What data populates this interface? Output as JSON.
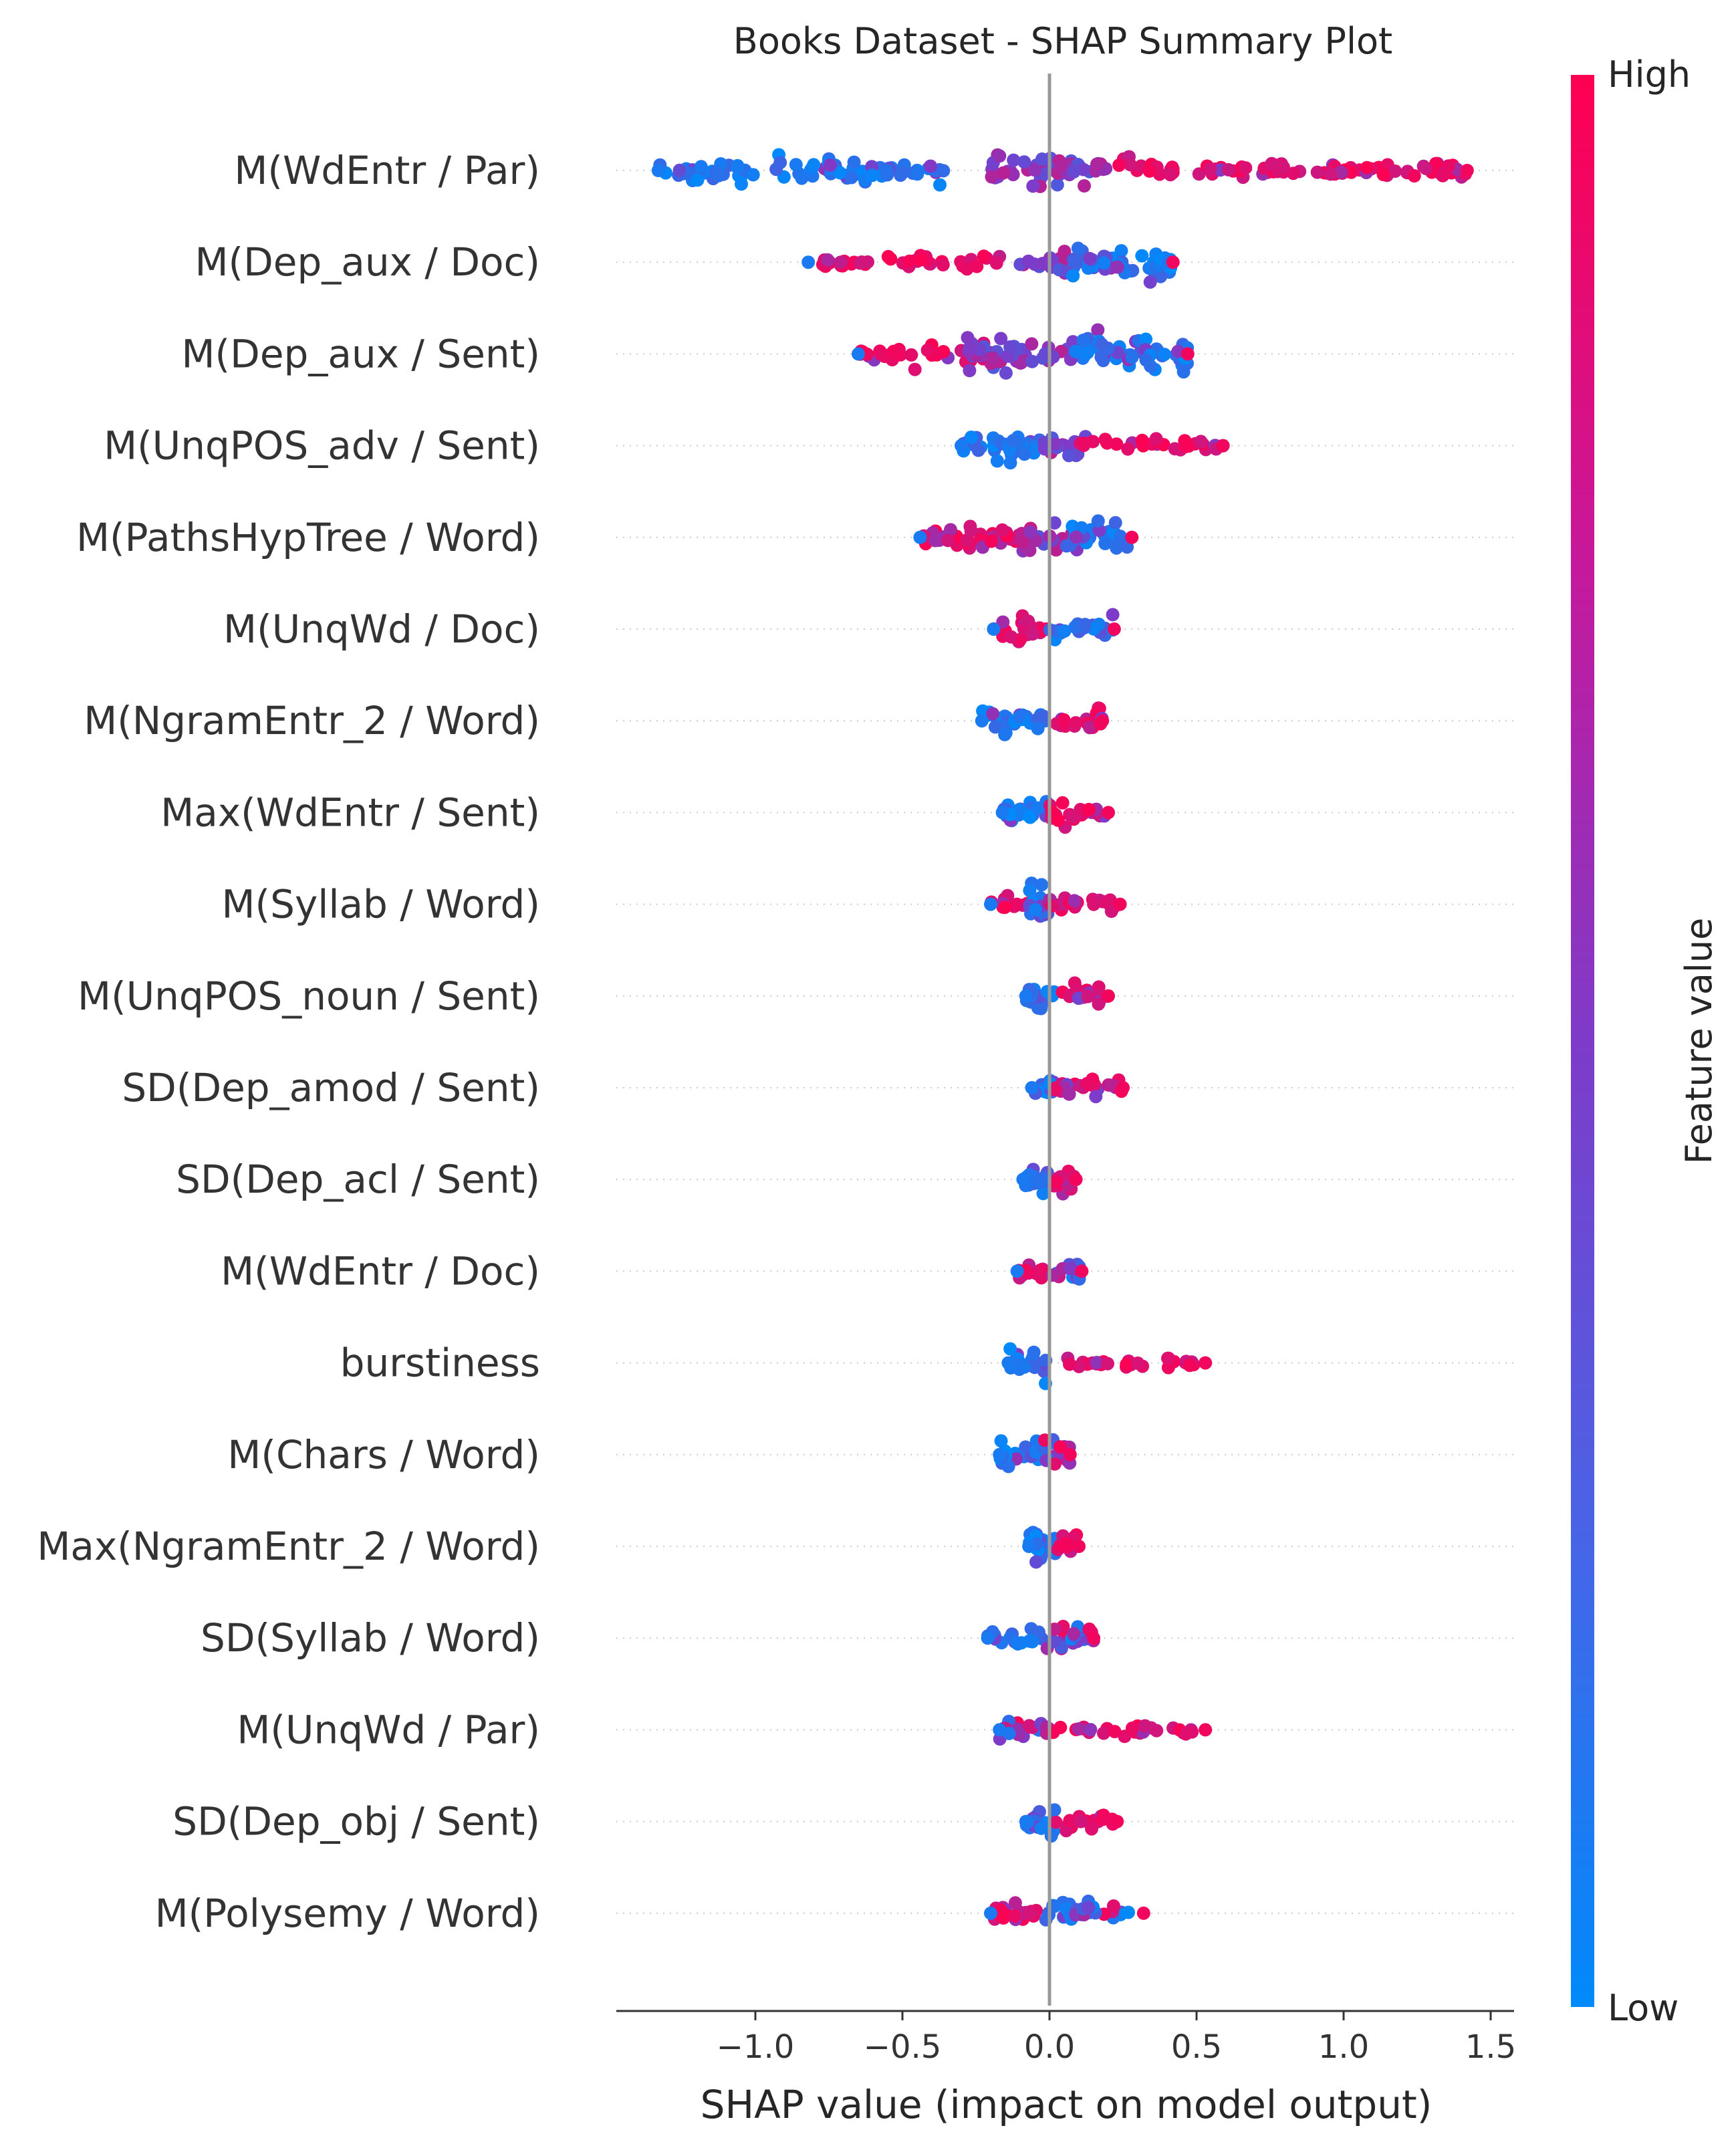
{
  "chart_data": {
    "type": "scatter",
    "subtype": "beeswarm",
    "title": "Books Dataset - SHAP Summary Plot",
    "xlabel": "SHAP value (impact on model output)",
    "ylabel": "",
    "xlim": [
      -1.45,
      1.52
    ],
    "xticks": [
      -1.0,
      -0.5,
      0.0,
      0.5,
      1.0,
      1.5
    ],
    "xtick_labels": [
      "−1.0",
      "−0.5",
      "0.0",
      "0.5",
      "1.0",
      "1.5"
    ],
    "colorbar": {
      "title": "Feature value",
      "high_label": "High",
      "low_label": "Low",
      "low_color": "#008afb",
      "high_color": "#ff0051"
    },
    "features": [
      {
        "name": "M(WdEntr / Par)",
        "min": -1.33,
        "max": 1.42,
        "segments": [
          {
            "from": -1.33,
            "to": -0.35,
            "color": "low",
            "density": 1.0
          },
          {
            "from": -0.2,
            "to": 0.2,
            "color": "mid",
            "density": 1.3
          },
          {
            "from": 0.2,
            "to": 1.42,
            "color": "high",
            "density": 0.8
          }
        ]
      },
      {
        "name": "M(Dep_aux / Doc)",
        "min": -0.82,
        "max": 0.42,
        "segments": [
          {
            "from": -0.82,
            "to": -0.1,
            "color": "high",
            "density": 0.6
          },
          {
            "from": -0.1,
            "to": 0.1,
            "color": "mid",
            "density": 0.8
          },
          {
            "from": 0.05,
            "to": 0.42,
            "color": "low",
            "density": 1.3
          }
        ]
      },
      {
        "name": "M(Dep_aux / Sent)",
        "min": -0.65,
        "max": 0.47,
        "segments": [
          {
            "from": -0.65,
            "to": -0.2,
            "color": "high",
            "density": 0.8
          },
          {
            "from": -0.3,
            "to": 0.1,
            "color": "mid",
            "density": 1.2
          },
          {
            "from": 0.05,
            "to": 0.47,
            "color": "low",
            "density": 1.4
          }
        ]
      },
      {
        "name": "M(UnqPOS_adv / Sent)",
        "min": -0.3,
        "max": 0.59,
        "segments": [
          {
            "from": -0.3,
            "to": -0.02,
            "color": "low",
            "density": 1.1
          },
          {
            "from": -0.02,
            "to": 0.15,
            "color": "mid",
            "density": 0.8
          },
          {
            "from": 0.1,
            "to": 0.59,
            "color": "high",
            "density": 0.6
          }
        ]
      },
      {
        "name": "M(PathsHypTree / Word)",
        "min": -0.44,
        "max": 0.28,
        "segments": [
          {
            "from": -0.44,
            "to": -0.05,
            "color": "high",
            "density": 1.0
          },
          {
            "from": -0.1,
            "to": 0.1,
            "color": "mid",
            "density": 1.3
          },
          {
            "from": 0.05,
            "to": 0.28,
            "color": "low",
            "density": 1.1
          }
        ]
      },
      {
        "name": "M(UnqWd / Doc)",
        "min": -0.19,
        "max": 0.22,
        "segments": [
          {
            "from": -0.19,
            "to": 0.0,
            "color": "high",
            "density": 1.0
          },
          {
            "from": 0.0,
            "to": 0.22,
            "color": "low",
            "density": 0.8
          }
        ]
      },
      {
        "name": "M(NgramEntr_2 / Word)",
        "min": -0.23,
        "max": 0.18,
        "segments": [
          {
            "from": -0.23,
            "to": 0.0,
            "color": "low",
            "density": 1.1
          },
          {
            "from": 0.0,
            "to": 0.18,
            "color": "high",
            "density": 0.9
          }
        ]
      },
      {
        "name": "Max(WdEntr / Sent)",
        "min": -0.16,
        "max": 0.2,
        "segments": [
          {
            "from": -0.16,
            "to": 0.0,
            "color": "low",
            "density": 1.0
          },
          {
            "from": 0.0,
            "to": 0.2,
            "color": "high",
            "density": 0.8
          }
        ]
      },
      {
        "name": "M(Syllab / Word)",
        "min": -0.2,
        "max": 0.24,
        "segments": [
          {
            "from": -0.2,
            "to": -0.04,
            "color": "high",
            "density": 0.6
          },
          {
            "from": -0.07,
            "to": 0.0,
            "color": "low",
            "density": 1.4
          },
          {
            "from": 0.0,
            "to": 0.24,
            "color": "high",
            "density": 0.7
          }
        ]
      },
      {
        "name": "M(UnqPOS_noun / Sent)",
        "min": -0.08,
        "max": 0.2,
        "segments": [
          {
            "from": -0.08,
            "to": 0.02,
            "color": "low",
            "density": 1.2
          },
          {
            "from": 0.02,
            "to": 0.2,
            "color": "mixhigh",
            "density": 0.8
          }
        ]
      },
      {
        "name": "SD(Dep_amod / Sent)",
        "min": -0.06,
        "max": 0.25,
        "segments": [
          {
            "from": -0.06,
            "to": 0.02,
            "color": "low",
            "density": 1.2
          },
          {
            "from": 0.02,
            "to": 0.25,
            "color": "mixhigh",
            "density": 0.9
          }
        ]
      },
      {
        "name": "SD(Dep_acl / Sent)",
        "min": -0.09,
        "max": 0.09,
        "segments": [
          {
            "from": -0.09,
            "to": 0.0,
            "color": "low",
            "density": 1.2
          },
          {
            "from": 0.0,
            "to": 0.09,
            "color": "high",
            "density": 1.0
          }
        ]
      },
      {
        "name": "M(WdEntr / Doc)",
        "min": -0.11,
        "max": 0.11,
        "segments": [
          {
            "from": -0.11,
            "to": 0.0,
            "color": "high",
            "density": 0.8
          },
          {
            "from": 0.0,
            "to": 0.11,
            "color": "mix",
            "density": 0.8
          }
        ]
      },
      {
        "name": "burstiness",
        "min": -0.14,
        "max": 0.53,
        "segments": [
          {
            "from": -0.14,
            "to": 0.0,
            "color": "low",
            "density": 1.1
          },
          {
            "from": 0.0,
            "to": 0.53,
            "color": "high",
            "density": 0.45
          }
        ]
      },
      {
        "name": "M(Chars / Word)",
        "min": -0.17,
        "max": 0.07,
        "segments": [
          {
            "from": -0.17,
            "to": -0.02,
            "color": "low",
            "density": 1.0
          },
          {
            "from": -0.02,
            "to": 0.07,
            "color": "mix",
            "density": 1.4
          }
        ]
      },
      {
        "name": "Max(NgramEntr_2 / Word)",
        "min": -0.07,
        "max": 0.1,
        "segments": [
          {
            "from": -0.07,
            "to": 0.02,
            "color": "low",
            "density": 1.4
          },
          {
            "from": 0.02,
            "to": 0.1,
            "color": "high",
            "density": 0.9
          }
        ]
      },
      {
        "name": "SD(Syllab / Word)",
        "min": -0.21,
        "max": 0.15,
        "segments": [
          {
            "from": -0.21,
            "to": -0.02,
            "color": "low",
            "density": 0.7
          },
          {
            "from": -0.02,
            "to": 0.15,
            "color": "mix",
            "density": 1.0
          }
        ]
      },
      {
        "name": "M(UnqWd / Par)",
        "min": -0.17,
        "max": 0.53,
        "segments": [
          {
            "from": -0.17,
            "to": 0.0,
            "color": "mix",
            "density": 0.8
          },
          {
            "from": 0.0,
            "to": 0.53,
            "color": "high",
            "density": 0.5
          }
        ]
      },
      {
        "name": "SD(Dep_obj / Sent)",
        "min": -0.08,
        "max": 0.23,
        "segments": [
          {
            "from": -0.08,
            "to": 0.02,
            "color": "low",
            "density": 1.2
          },
          {
            "from": 0.02,
            "to": 0.23,
            "color": "high",
            "density": 0.7
          }
        ]
      },
      {
        "name": "M(Polysemy / Word)",
        "min": -0.2,
        "max": 0.32,
        "segments": [
          {
            "from": -0.2,
            "to": -0.02,
            "color": "high",
            "density": 0.8
          },
          {
            "from": -0.02,
            "to": 0.15,
            "color": "low",
            "density": 1.1
          },
          {
            "from": 0.05,
            "to": 0.32,
            "color": "mix",
            "density": 0.4
          }
        ]
      }
    ]
  }
}
